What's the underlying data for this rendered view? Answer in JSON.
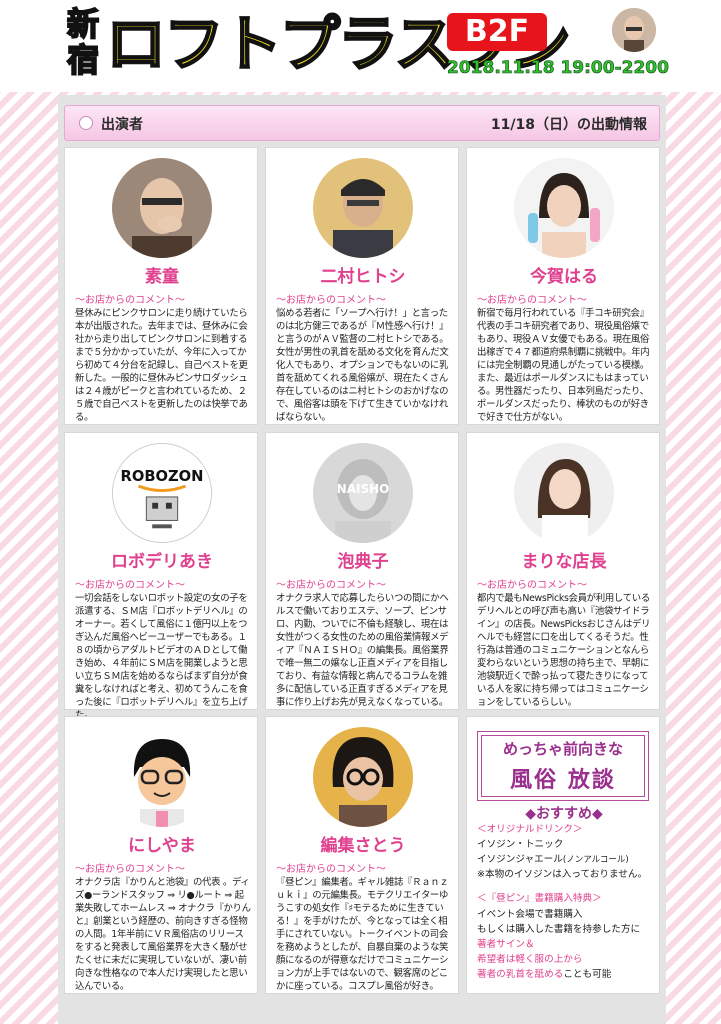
{
  "header": {
    "venue_kanji": "新宿",
    "venue_name": "ロフトプラスワン",
    "floor": "B2F",
    "date": "2018.11.18 19:00-2200"
  },
  "section": {
    "left_label": "出演者",
    "right_label": "11/18（日）の出動情報"
  },
  "comment_title": "～お店からのコメント～",
  "performers": [
    {
      "name": "素童",
      "avatar_label": "",
      "comment": "昼休みにピンクサロンに走り続けていたら本が出版された。去年までは、昼休みに会社から走り出してピンクサロンに到着するまで５分かかっていたが、今年に入ってから初めて４分台を記録し、自己ベストを更新した。一般的に昼休みピンサロダッシュは２４歳がピークと言われているため、２５歳で自己ベストを更新したのは快挙である。"
    },
    {
      "name": "二村ヒトシ",
      "avatar_label": "",
      "comment": "悩める若者に「ソープへ行け！」と言ったのは北方健三であるが『Ｍ性感へ行け！』と言うのがＡＶ監督の二村ヒトシである。女性が男性の乳首を舐める文化を育んだ文化人でもあり、オプションでもないのに乳首を舐めてくれる風俗嬢が、現在たくさん存在しているのはニ村ヒトシのおかげなので、風俗客は頭を下げて生きていかなければならない。"
    },
    {
      "name": "今賀はる",
      "avatar_label": "",
      "comment": "新宿で毎月行われている『手コキ研究会』代表の手コキ研究者であり、現役風俗嬢でもあり、現役ＡＶ女優でもある。現在風俗出稼ぎで４７都道府県制覇に挑戦中。年内には完全制覇の見通しがたっている模様。また、最近はポールダンスにもはまっている。男性器だったり、日本列島だったり、ポールダンスだったり、棒状のものが好きで好きで仕方がない。"
    },
    {
      "name": "ロボデリあき",
      "avatar_label": "ROBOZON",
      "comment": "一切会話をしないロボット設定の女の子を派遣する、ＳＭ店『ロボットデリヘル』のオーナー。若くして風俗に１億円以上をつぎ込んだ風俗ヘビーユーザーでもある。１８の頃からアダルトビデオのＡＤとして働き始め、４年前にＳＭ店を開業しようと思い立ちＳＭ店を始めるならばまず自分が食糞をしなければと考え、初めてうんこを食った後に『ロボットデリヘル』を立ち上げた。"
    },
    {
      "name": "泡典子",
      "avatar_label": "NAISHO",
      "comment": "オナクラ求人で応募したらいつの間にかヘルスで働いておりエステ、ソープ、ピンサロ、内勤、ついでに不倫も経験し、現在は女性がつくる女性のための風俗業情報メディア『ＮＡＩＳＨＯ』の編集長。風俗業界で唯一無二の嬢なし正直メディアを目指しており、有益な情報と病んでるコラムを雑多に配信している正直すぎるメディアを見事に作り上げお先が見えなくなっている。"
    },
    {
      "name": "まりな店長",
      "avatar_label": "",
      "comment": "都内で最もNewsPicks会員が利用しているデリヘルとの呼び声も高い『池袋サイドライン』の店長。NewsPicksおじさんはデリヘルでも経営に口を出してくるそうだ。性行為は普通のコミュニケーションとなんら変わらないという思想の持ち主で、早朝に池袋駅近くで酔っ払って寝たきりになっている人を家に持ち帰ってはコミュニケーションをしているらしい。"
    },
    {
      "name": "にしやま",
      "avatar_label": "",
      "comment": "オナクラ店『かりんと池袋』の代表 。ディズ●ーランドスタッフ ⇒ リ●ルート ⇒ 起業失敗してホームレス ⇒ オナクラ『かりんと』創業という経歴の、前向きすぎる怪物の人間。1年半前にＶＲ風俗店のリリースをすると発表して風俗業界を大きく騒がせたくせに未だに実現していないが、凄い前向きな性格なので本人だけ実現したと思い込んでいる。"
    },
    {
      "name": "編集さとう",
      "avatar_label": "",
      "comment": "『昼ピン』編集者。ギャル雑誌『Ｒａｎｚｕｋｉ』の元編集長。モテクリエイターゆうこすの処女作『♯モテるために生きている！』を手がけたが、今となっては全く相手にされていない。トークイベントの司会を務めようとしたが、自暴自棄のような笑顔になるのが得意なだけでコミュニケーション力が上手ではないので、観客席のどこかに座っている。コスプレ風俗が好き。"
    }
  ],
  "promo": {
    "line1": "めっちゃ前向きな",
    "line2": "風俗 放談",
    "heading": "◆おすすめ◆",
    "drink_title": "＜オリジナルドリンク＞",
    "drink1": "イソジン・トニック",
    "drink2": "イソジンジャエール",
    "drink2_note": "(ノンアルコール)",
    "drink_note": "※本物のイソジンは入っておりません。",
    "book_title": "＜『昼ピン』書籍購入特典＞",
    "book1": "イベント会場で書籍購入",
    "book2": "もしくは購入した書籍を持参した方に",
    "book3": "著者サイン＆",
    "book4": "希望者は軽く服の上から",
    "book5_pink": "著者の乳首を舐める",
    "book5_rest": "ことも可能"
  },
  "colors": {
    "accent_pink": "#e0418f",
    "title_yellow": "#f4e61c",
    "badge_red": "#e8141c",
    "date_green": "#2ec12e",
    "promo_purple": "#9a2f8d"
  }
}
